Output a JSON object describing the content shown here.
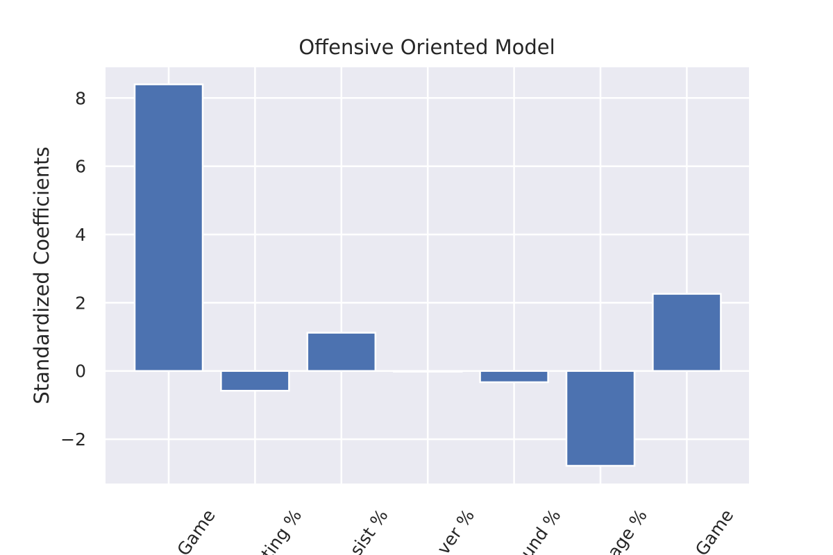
{
  "chart_data": {
    "type": "bar",
    "title": "Offensive Oriented Model",
    "xlabel": "",
    "ylabel": "Standardized Coefficients",
    "categories": [
      "Game",
      "ting %",
      "sist %",
      "ver %",
      "und %",
      "age %",
      "Game"
    ],
    "values": [
      8.4,
      -0.58,
      1.12,
      -0.02,
      -0.33,
      -2.78,
      2.26
    ],
    "ylim": [
      -3.3,
      8.9
    ],
    "yticks": [
      -2,
      0,
      2,
      4,
      6,
      8
    ],
    "ytick_labels": [
      "−2",
      "0",
      "2",
      "4",
      "6",
      "8"
    ],
    "grid": true,
    "legend": "none",
    "colors": {
      "bar": "#4c72b0",
      "plot_background": "#eaeaf2",
      "grid": "#ffffff",
      "text": "#262626"
    }
  }
}
